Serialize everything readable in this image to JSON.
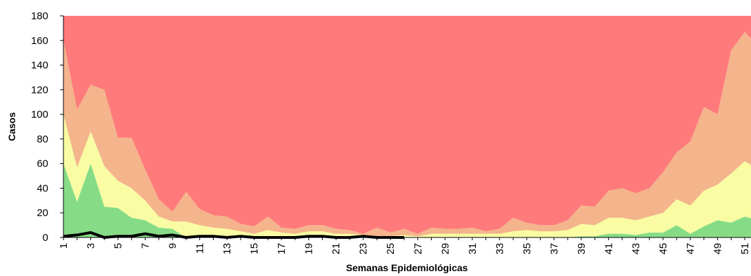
{
  "chart_data": {
    "type": "stacked-area",
    "x_label": "Semanas Epidemiológicas",
    "y_label": "Casos",
    "categories": [
      "1",
      null,
      "3",
      null,
      "5",
      null,
      "7",
      null,
      "9",
      null,
      "11",
      null,
      "13",
      null,
      "15",
      null,
      "17",
      null,
      "19",
      null,
      "21",
      null,
      "23",
      null,
      "25",
      null,
      "27",
      null,
      "29",
      null,
      "31",
      null,
      "33",
      null,
      "35",
      null,
      "37",
      null,
      "39",
      null,
      "41",
      null,
      "43",
      null,
      "45",
      null,
      "47",
      null,
      "49",
      null,
      "51",
      null
    ],
    "series": [
      {
        "color": "#86dc86",
        "values": [
          60,
          29,
          60,
          25,
          24,
          16,
          14,
          8,
          7,
          0,
          0,
          0,
          0,
          0,
          0,
          0,
          0,
          0,
          0,
          0,
          0,
          0,
          0,
          0,
          0,
          0,
          0,
          0,
          0,
          0,
          0,
          0,
          0,
          0,
          0,
          0,
          0,
          0,
          1,
          1,
          3,
          3,
          2,
          4,
          4,
          10,
          3,
          9,
          14,
          12,
          17,
          14
        ]
      },
      {
        "color": "#f9fca2",
        "values": [
          40,
          28,
          26,
          33,
          22,
          24,
          16,
          9,
          6,
          13,
          10,
          8,
          7,
          5,
          3,
          6,
          4,
          3,
          5,
          5,
          3,
          3,
          2,
          1,
          1,
          2,
          1,
          3,
          3,
          3,
          3,
          3,
          3,
          5,
          6,
          5,
          5,
          6,
          10,
          9,
          13,
          13,
          12,
          13,
          16,
          21,
          23,
          29,
          29,
          40,
          45,
          41
        ]
      },
      {
        "color": "#f4b48c",
        "values": [
          60,
          47,
          38,
          62,
          35,
          41,
          25,
          14,
          8,
          24,
          13,
          10,
          10,
          6,
          6,
          11,
          4,
          4,
          5,
          5,
          4,
          3,
          1,
          7,
          3,
          5,
          2,
          5,
          4,
          4,
          5,
          2,
          4,
          11,
          6,
          5,
          5,
          8,
          15,
          15,
          22,
          24,
          22,
          23,
          33,
          38,
          52,
          68,
          57,
          100,
          105,
          100
        ]
      },
      {
        "color": "#ff7b7b",
        "values": [
          20,
          76,
          56,
          60,
          99,
          99,
          125,
          149,
          159,
          143,
          157,
          162,
          163,
          169,
          171,
          163,
          172,
          173,
          170,
          170,
          173,
          174,
          177,
          172,
          176,
          173,
          177,
          172,
          173,
          173,
          172,
          175,
          173,
          164,
          168,
          170,
          170,
          166,
          154,
          155,
          142,
          140,
          144,
          140,
          127,
          111,
          102,
          74,
          80,
          28,
          13,
          25
        ]
      }
    ],
    "line": {
      "color": "#000000",
      "values": [
        1,
        2,
        4,
        0,
        1,
        1,
        3,
        1,
        2,
        0,
        1,
        1,
        0,
        1,
        0,
        0,
        0,
        0,
        1,
        1,
        0,
        0,
        1,
        0,
        0,
        0,
        null,
        null,
        null,
        null,
        null,
        null,
        null,
        null,
        null,
        null,
        null,
        null,
        null,
        null,
        null,
        null,
        null,
        null,
        null,
        null,
        null,
        null,
        null,
        null,
        null,
        null
      ]
    },
    "ylim": [
      0,
      180
    ],
    "yticks": [
      0,
      20,
      40,
      60,
      80,
      100,
      120,
      140,
      160,
      180
    ]
  }
}
